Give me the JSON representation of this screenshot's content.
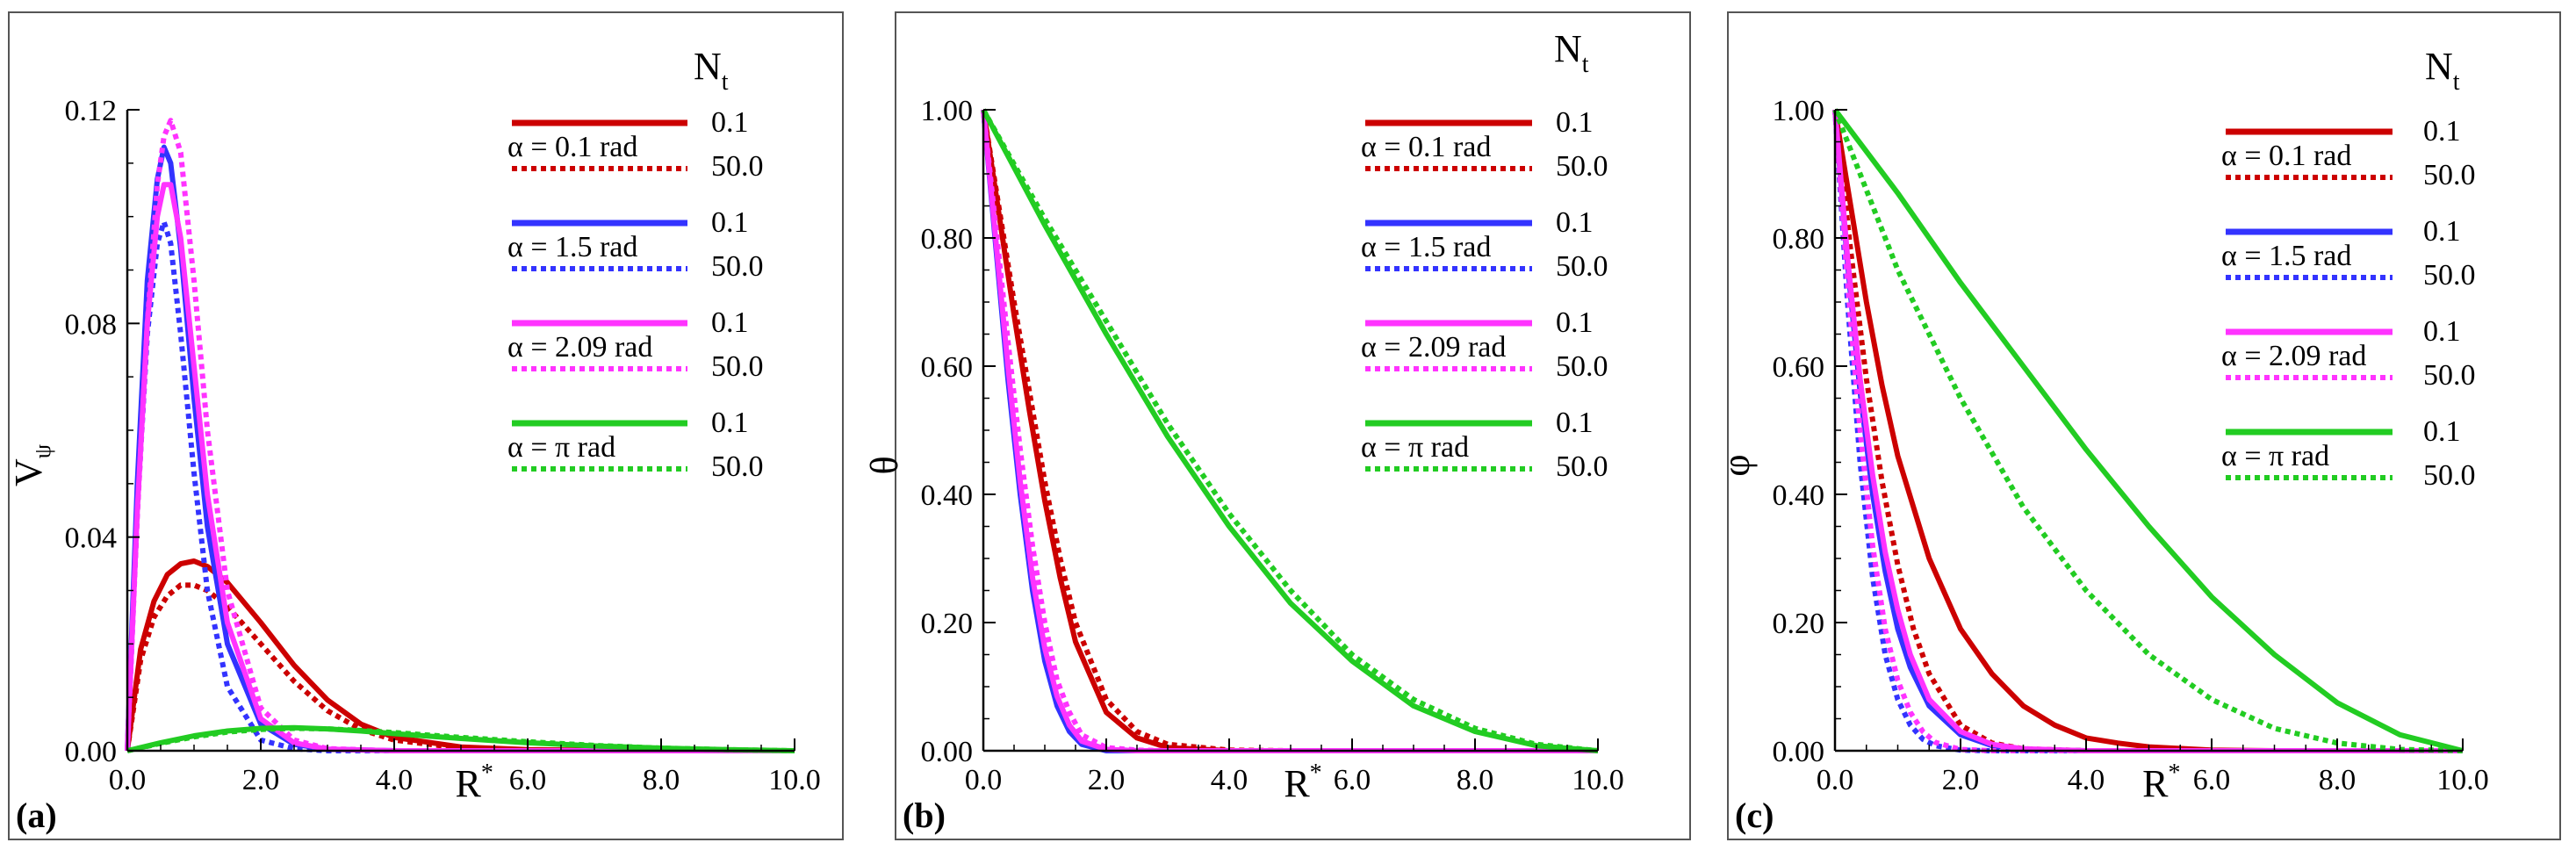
{
  "figure": {
    "panels": [
      {
        "id": "a",
        "tag": "(a)"
      },
      {
        "id": "b",
        "tag": "(b)"
      },
      {
        "id": "c",
        "tag": "(c)"
      }
    ]
  },
  "colors": {
    "red": "#cc0000",
    "blue": "#3333ff",
    "magenta": "#ff33ff",
    "green": "#22cc22",
    "frame": "#555555"
  },
  "chart_data": [
    {
      "type": "line",
      "panel": "(a)",
      "xlabel": "R*",
      "ylabel": "Vψ",
      "xlim": [
        0,
        10
      ],
      "ylim": [
        0,
        0.12
      ],
      "x_ticks": [
        "0.0",
        "2.0",
        "4.0",
        "6.0",
        "8.0",
        "10.0"
      ],
      "y_ticks": [
        "0.00",
        "0.04",
        "0.08",
        "0.12"
      ],
      "legend": {
        "title": "Nt",
        "entries": [
          {
            "alpha": "α = 0.1 rad",
            "solid": "0.1",
            "dotted": "50.0"
          },
          {
            "alpha": "α = 1.5 rad",
            "solid": "0.1",
            "dotted": "50.0"
          },
          {
            "alpha": "α = 2.09 rad",
            "solid": "0.1",
            "dotted": "50.0"
          },
          {
            "alpha": "α = π rad",
            "solid": "0.1",
            "dotted": "50.0"
          }
        ]
      },
      "series": [
        {
          "color": "red",
          "dash": false,
          "x": [
            0,
            0.2,
            0.4,
            0.6,
            0.8,
            1.0,
            1.2,
            1.5,
            2.0,
            2.5,
            3.0,
            3.5,
            4.0,
            5.0,
            6.0,
            8.0,
            10.0
          ],
          "y": [
            0,
            0.019,
            0.028,
            0.033,
            0.035,
            0.0355,
            0.0345,
            0.0315,
            0.024,
            0.016,
            0.0095,
            0.005,
            0.0025,
            0.0007,
            0.0002,
            0,
            0
          ]
        },
        {
          "color": "red",
          "dash": true,
          "x": [
            0,
            0.2,
            0.4,
            0.6,
            0.8,
            1.0,
            1.2,
            1.5,
            2.0,
            2.5,
            3.0,
            3.5,
            4.0,
            5.0,
            6.0,
            8.0,
            10.0
          ],
          "y": [
            0,
            0.017,
            0.025,
            0.029,
            0.031,
            0.031,
            0.03,
            0.027,
            0.02,
            0.013,
            0.0075,
            0.004,
            0.002,
            0.0005,
            0.0001,
            0,
            0
          ]
        },
        {
          "color": "blue",
          "dash": false,
          "x": [
            0,
            0.15,
            0.3,
            0.45,
            0.55,
            0.65,
            0.8,
            1.0,
            1.2,
            1.5,
            2.0,
            2.5,
            3.0,
            4.0,
            6.0,
            10.0
          ],
          "y": [
            0,
            0.05,
            0.088,
            0.107,
            0.113,
            0.11,
            0.094,
            0.066,
            0.042,
            0.02,
            0.005,
            0.0012,
            0.0003,
            0,
            0,
            0
          ]
        },
        {
          "color": "blue",
          "dash": true,
          "x": [
            0,
            0.15,
            0.3,
            0.45,
            0.55,
            0.65,
            0.8,
            1.0,
            1.2,
            1.5,
            2.0,
            2.5,
            3.0,
            4.0,
            6.0,
            10.0
          ],
          "y": [
            0,
            0.045,
            0.078,
            0.095,
            0.099,
            0.095,
            0.078,
            0.052,
            0.03,
            0.012,
            0.002,
            0.0004,
            0,
            0,
            0,
            0
          ]
        },
        {
          "color": "magenta",
          "dash": false,
          "x": [
            0,
            0.15,
            0.3,
            0.45,
            0.55,
            0.65,
            0.8,
            1.0,
            1.2,
            1.5,
            2.0,
            2.5,
            3.0,
            4.0,
            6.0,
            10.0
          ],
          "y": [
            0,
            0.045,
            0.08,
            0.1,
            0.106,
            0.106,
            0.096,
            0.072,
            0.048,
            0.024,
            0.006,
            0.0015,
            0.0003,
            0,
            0,
            0
          ]
        },
        {
          "color": "magenta",
          "dash": true,
          "x": [
            0,
            0.15,
            0.3,
            0.45,
            0.55,
            0.65,
            0.8,
            1.0,
            1.2,
            1.5,
            2.0,
            2.5,
            3.0,
            4.0,
            6.0,
            10.0
          ],
          "y": [
            0,
            0.044,
            0.08,
            0.106,
            0.115,
            0.118,
            0.112,
            0.088,
            0.06,
            0.03,
            0.008,
            0.002,
            0.0004,
            0,
            0,
            0
          ]
        },
        {
          "color": "green",
          "dash": false,
          "x": [
            0,
            0.5,
            1.0,
            1.5,
            2.0,
            2.5,
            3.0,
            3.5,
            4.0,
            5.0,
            6.0,
            7.0,
            8.0,
            9.0,
            10.0
          ],
          "y": [
            0,
            0.0015,
            0.0028,
            0.0037,
            0.0042,
            0.0043,
            0.0041,
            0.0037,
            0.0032,
            0.0023,
            0.0015,
            0.0009,
            0.0005,
            0.0002,
            0
          ]
        },
        {
          "color": "green",
          "dash": true,
          "x": [
            0,
            0.5,
            1.0,
            1.5,
            2.0,
            2.5,
            3.0,
            3.5,
            4.0,
            5.0,
            6.0,
            7.0,
            8.0,
            9.0,
            10.0
          ],
          "y": [
            0,
            0.0014,
            0.0026,
            0.0035,
            0.004,
            0.0042,
            0.0041,
            0.0038,
            0.0034,
            0.0025,
            0.0017,
            0.001,
            0.0005,
            0.0002,
            0
          ]
        }
      ]
    },
    {
      "type": "line",
      "panel": "(b)",
      "xlabel": "R*",
      "ylabel": "θ",
      "xlim": [
        0,
        10
      ],
      "ylim": [
        0,
        1
      ],
      "x_ticks": [
        "0.0",
        "2.0",
        "4.0",
        "6.0",
        "8.0",
        "10.0"
      ],
      "y_ticks": [
        "0.00",
        "0.20",
        "0.40",
        "0.60",
        "0.80",
        "1.00"
      ],
      "legend": {
        "title": "Nt",
        "entries": [
          {
            "alpha": "α = 0.1 rad",
            "solid": "0.1",
            "dotted": "50.0"
          },
          {
            "alpha": "α = 1.5 rad",
            "solid": "0.1",
            "dotted": "50.0"
          },
          {
            "alpha": "α = 2.09 rad",
            "solid": "0.1",
            "dotted": "50.0"
          },
          {
            "alpha": "α = π rad",
            "solid": "0.1",
            "dotted": "50.0"
          }
        ]
      },
      "series": [
        {
          "color": "red",
          "dash": false,
          "x": [
            0,
            0.25,
            0.5,
            0.75,
            1.0,
            1.25,
            1.5,
            2.0,
            2.5,
            3.0,
            4.0,
            5.0,
            10.0
          ],
          "y": [
            1.0,
            0.84,
            0.68,
            0.53,
            0.39,
            0.27,
            0.17,
            0.06,
            0.02,
            0.005,
            0,
            0,
            0
          ]
        },
        {
          "color": "red",
          "dash": true,
          "x": [
            0,
            0.25,
            0.5,
            0.75,
            1.0,
            1.25,
            1.5,
            2.0,
            2.5,
            3.0,
            4.0,
            5.0,
            10.0
          ],
          "y": [
            1.0,
            0.85,
            0.7,
            0.56,
            0.42,
            0.3,
            0.2,
            0.08,
            0.03,
            0.01,
            0.001,
            0,
            0
          ]
        },
        {
          "color": "blue",
          "dash": false,
          "x": [
            0,
            0.2,
            0.4,
            0.6,
            0.8,
            1.0,
            1.2,
            1.4,
            1.6,
            2.0,
            2.5,
            3.0,
            10.0
          ],
          "y": [
            1.0,
            0.79,
            0.58,
            0.4,
            0.25,
            0.14,
            0.07,
            0.03,
            0.01,
            0,
            0,
            0,
            0
          ]
        },
        {
          "color": "blue",
          "dash": true,
          "x": [
            0,
            0.2,
            0.4,
            0.6,
            0.8,
            1.0,
            1.2,
            1.4,
            1.6,
            2.0,
            2.5,
            3.0,
            10.0
          ],
          "y": [
            1.0,
            0.8,
            0.6,
            0.42,
            0.27,
            0.16,
            0.08,
            0.04,
            0.015,
            0.002,
            0,
            0,
            0
          ]
        },
        {
          "color": "magenta",
          "dash": false,
          "x": [
            0,
            0.2,
            0.4,
            0.6,
            0.8,
            1.0,
            1.2,
            1.4,
            1.6,
            2.0,
            2.5,
            3.0,
            10.0
          ],
          "y": [
            1.0,
            0.8,
            0.6,
            0.42,
            0.27,
            0.16,
            0.085,
            0.04,
            0.015,
            0.002,
            0,
            0,
            0
          ]
        },
        {
          "color": "magenta",
          "dash": true,
          "x": [
            0,
            0.2,
            0.4,
            0.6,
            0.8,
            1.0,
            1.2,
            1.4,
            1.6,
            2.0,
            2.5,
            3.0,
            10.0
          ],
          "y": [
            1.0,
            0.82,
            0.64,
            0.47,
            0.32,
            0.2,
            0.11,
            0.06,
            0.025,
            0.005,
            0.001,
            0,
            0
          ]
        },
        {
          "color": "green",
          "dash": false,
          "x": [
            0,
            1,
            2,
            3,
            4,
            5,
            6,
            7,
            8,
            9,
            10
          ],
          "y": [
            1.0,
            0.82,
            0.65,
            0.49,
            0.35,
            0.23,
            0.14,
            0.07,
            0.03,
            0.008,
            0
          ]
        },
        {
          "color": "green",
          "dash": true,
          "x": [
            0,
            1,
            2,
            3,
            4,
            5,
            6,
            7,
            8,
            9,
            10
          ],
          "y": [
            1.0,
            0.83,
            0.67,
            0.51,
            0.37,
            0.25,
            0.15,
            0.08,
            0.035,
            0.01,
            0
          ]
        }
      ]
    },
    {
      "type": "line",
      "panel": "(c)",
      "xlabel": "R*",
      "ylabel": "φ",
      "xlim": [
        0,
        10
      ],
      "ylim": [
        0,
        1
      ],
      "x_ticks": [
        "0.0",
        "2.0",
        "4.0",
        "6.0",
        "8.0",
        "10.0"
      ],
      "y_ticks": [
        "0.00",
        "0.20",
        "0.40",
        "0.60",
        "0.80",
        "1.00"
      ],
      "legend": {
        "title": "Nt",
        "entries": [
          {
            "alpha": "α = 0.1 rad",
            "solid": "0.1",
            "dotted": "50.0"
          },
          {
            "alpha": "α = 1.5 rad",
            "solid": "0.1",
            "dotted": "50.0"
          },
          {
            "alpha": "α = 2.09 rad",
            "solid": "0.1",
            "dotted": "50.0"
          },
          {
            "alpha": "α = π rad",
            "solid": "0.1",
            "dotted": "50.0"
          }
        ]
      },
      "series": [
        {
          "color": "red",
          "dash": false,
          "x": [
            0,
            0.25,
            0.5,
            0.75,
            1.0,
            1.5,
            2.0,
            2.5,
            3.0,
            3.5,
            4.0,
            4.5,
            5.0,
            6.0,
            7.0,
            10.0
          ],
          "y": [
            1.0,
            0.85,
            0.7,
            0.57,
            0.46,
            0.3,
            0.19,
            0.12,
            0.07,
            0.04,
            0.02,
            0.012,
            0.006,
            0.001,
            0,
            0
          ]
        },
        {
          "color": "red",
          "dash": true,
          "x": [
            0,
            0.25,
            0.5,
            0.75,
            1.0,
            1.25,
            1.5,
            2.0,
            2.5,
            3.0,
            4.0,
            5.0,
            10.0
          ],
          "y": [
            1.0,
            0.78,
            0.58,
            0.42,
            0.29,
            0.19,
            0.12,
            0.04,
            0.012,
            0.003,
            0,
            0,
            0
          ]
        },
        {
          "color": "blue",
          "dash": false,
          "x": [
            0,
            0.2,
            0.4,
            0.6,
            0.8,
            1.0,
            1.2,
            1.5,
            2.0,
            2.5,
            3.0,
            4.0,
            10.0
          ],
          "y": [
            1.0,
            0.76,
            0.56,
            0.4,
            0.28,
            0.19,
            0.13,
            0.07,
            0.025,
            0.008,
            0.002,
            0,
            0
          ]
        },
        {
          "color": "blue",
          "dash": true,
          "x": [
            0,
            0.2,
            0.4,
            0.6,
            0.8,
            1.0,
            1.2,
            1.4,
            1.6,
            2.0,
            2.5,
            10.0
          ],
          "y": [
            1.0,
            0.7,
            0.45,
            0.27,
            0.15,
            0.08,
            0.04,
            0.018,
            0.008,
            0.001,
            0,
            0
          ]
        },
        {
          "color": "magenta",
          "dash": false,
          "x": [
            0,
            0.2,
            0.4,
            0.6,
            0.8,
            1.0,
            1.2,
            1.5,
            2.0,
            2.5,
            3.0,
            4.0,
            10.0
          ],
          "y": [
            1.0,
            0.77,
            0.58,
            0.43,
            0.31,
            0.22,
            0.15,
            0.08,
            0.03,
            0.01,
            0.003,
            0,
            0
          ]
        },
        {
          "color": "magenta",
          "dash": true,
          "x": [
            0,
            0.2,
            0.4,
            0.6,
            0.8,
            1.0,
            1.2,
            1.4,
            1.6,
            2.0,
            2.5,
            10.0
          ],
          "y": [
            1.0,
            0.73,
            0.5,
            0.32,
            0.19,
            0.11,
            0.06,
            0.03,
            0.013,
            0.002,
            0,
            0
          ]
        },
        {
          "color": "green",
          "dash": false,
          "x": [
            0,
            1,
            2,
            3,
            4,
            5,
            6,
            7,
            8,
            9,
            10
          ],
          "y": [
            1.0,
            0.87,
            0.73,
            0.6,
            0.47,
            0.35,
            0.24,
            0.15,
            0.075,
            0.025,
            0
          ]
        },
        {
          "color": "green",
          "dash": true,
          "x": [
            0,
            1,
            2,
            3,
            4,
            5,
            6,
            7,
            8,
            9,
            10
          ],
          "y": [
            1.0,
            0.75,
            0.55,
            0.38,
            0.25,
            0.15,
            0.08,
            0.035,
            0.012,
            0.002,
            0
          ]
        }
      ]
    }
  ]
}
